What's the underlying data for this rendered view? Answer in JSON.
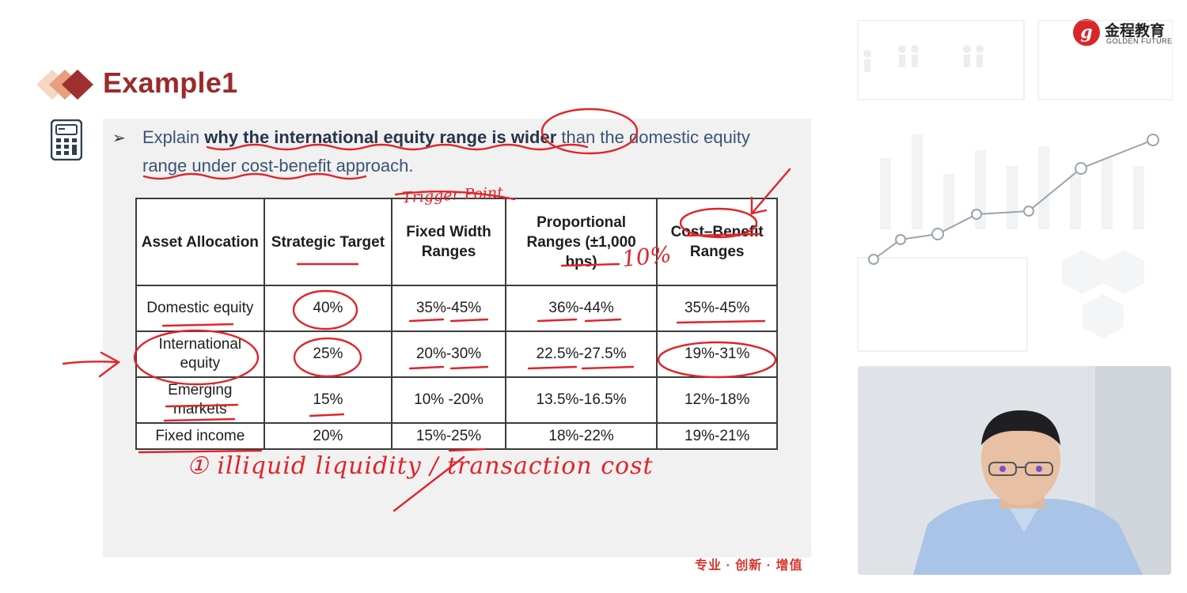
{
  "slide": {
    "title": "Example1",
    "question": {
      "bullet": "➢",
      "pre": "Explain ",
      "bold": "why the international equity range is wider",
      "post": " than the domestic equity range under cost-benefit approach."
    },
    "footer_slogan": "专业 · 创新 · 增值"
  },
  "table": {
    "headers": [
      "Asset Allocation",
      "Strategic Target",
      "Fixed Width Ranges",
      "Proportional Ranges (±1,000 bps)",
      "Cost–Benefit Ranges"
    ],
    "rows": [
      [
        "Domestic equity",
        "40%",
        "35%-45%",
        "36%-44%",
        "35%-45%"
      ],
      [
        "International equity",
        "25%",
        "20%-30%",
        "22.5%-27.5%",
        "19%-31%"
      ],
      [
        "Emerging markets",
        "15%",
        "10% -20%",
        "13.5%-16.5%",
        "12%-18%"
      ],
      [
        "Fixed income",
        "20%",
        "15%-25%",
        "18%-22%",
        "19%-21%"
      ]
    ]
  },
  "annotations": {
    "trigger": "Trigger Point",
    "ten_percent": "10%",
    "bottom_note": "① illiquid liquidity / transaction cost"
  },
  "logo": {
    "cn": "金程教育",
    "en": "GOLDEN FUTURE"
  },
  "colors": {
    "title": "#9c2a2a",
    "ink": "#e0242a",
    "text": "#3a5474"
  }
}
